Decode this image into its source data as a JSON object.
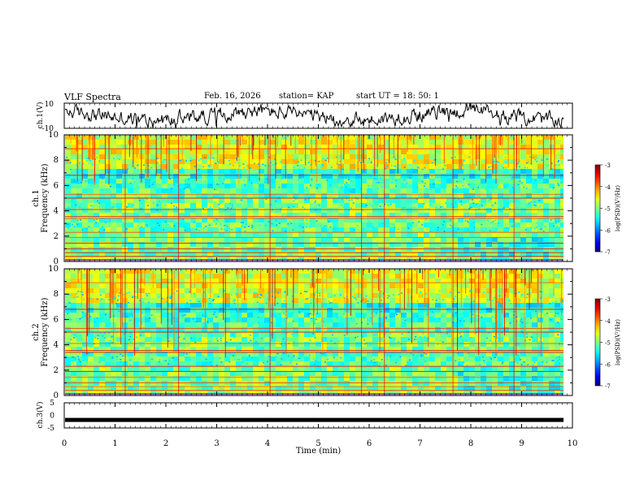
{
  "header": {
    "title": "VLF Spectra",
    "date": "Feb. 16, 2026",
    "station": "station= KAP",
    "start": "start  UT  =   18: 50: 1"
  },
  "chart_data": [
    {
      "type": "line",
      "panel": "ch1-waveform",
      "ylabel": "ch.1(V)",
      "ylim": [
        -10,
        10
      ],
      "yticks": [
        "10",
        "-10"
      ],
      "xlim": [
        0,
        10
      ],
      "note": "noisy waveform, approx. -5 to +5 V"
    },
    {
      "type": "heatmap",
      "panel": "ch1-spectrogram",
      "ylabel_channel": "ch.1",
      "ylabel": "Frequency (kHz)",
      "ylim": [
        0,
        10
      ],
      "yticks": [
        "0",
        "2",
        "4",
        "6",
        "8",
        "10"
      ],
      "xlim": [
        0,
        10
      ],
      "colorbar": {
        "label": "log(PSD)(V²/Hz)",
        "range": [
          -7,
          -3
        ],
        "ticks": [
          "-3",
          "-4",
          "-5",
          "-6",
          "-7"
        ]
      }
    },
    {
      "type": "heatmap",
      "panel": "ch2-spectrogram",
      "ylabel_channel": "ch.2",
      "ylabel": "Frequency (kHz)",
      "ylim": [
        0,
        10
      ],
      "yticks": [
        "0",
        "2",
        "4",
        "6",
        "8",
        "10"
      ],
      "xlim": [
        0,
        10
      ],
      "colorbar": {
        "label": "log(PSD)(V²/Hz)",
        "range": [
          -7,
          -3
        ],
        "ticks": [
          "-3",
          "-4",
          "-5",
          "-6",
          "-7"
        ]
      }
    },
    {
      "type": "line",
      "panel": "ch3-waveform",
      "ylabel": "ch.3(V)",
      "ylim": [
        -5,
        5
      ],
      "yticks": [
        "5",
        "0",
        "-5"
      ],
      "xlim": [
        0,
        10
      ],
      "note": "thick flat trace near -1.8 V"
    }
  ],
  "xaxis": {
    "label": "Time  (min)",
    "ticks": [
      "0",
      "1",
      "2",
      "3",
      "4",
      "5",
      "6",
      "7",
      "8",
      "9",
      "10"
    ]
  }
}
